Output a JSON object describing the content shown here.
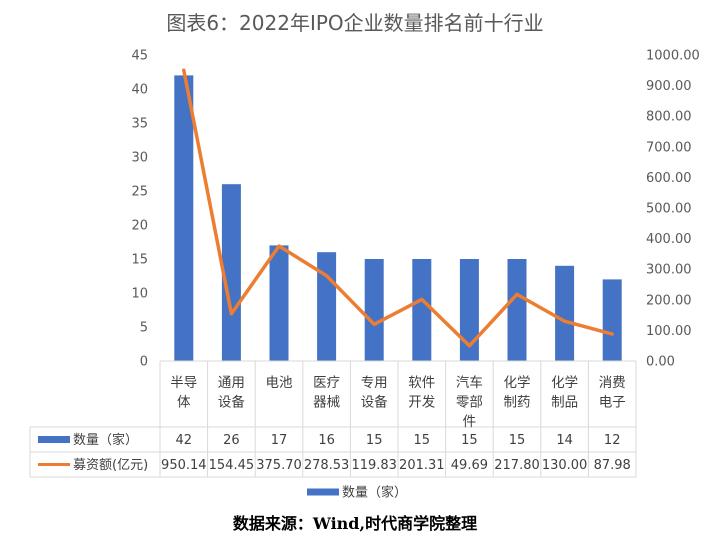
{
  "chart_data": {
    "type": "bar",
    "title": "图表6：2022年IPO企业数量排名前十行业",
    "categories": [
      [
        "半导",
        "体"
      ],
      [
        "通用",
        "设备"
      ],
      [
        "电池"
      ],
      [
        "医疗",
        "器械"
      ],
      [
        "专用",
        "设备"
      ],
      [
        "软件",
        "开发"
      ],
      [
        "汽车",
        "零部",
        "件"
      ],
      [
        "化学",
        "制药"
      ],
      [
        "化学",
        "制品"
      ],
      [
        "消费",
        "电子"
      ]
    ],
    "series": [
      {
        "name": "数量（家）",
        "type": "bar",
        "axis": "left",
        "color": "#4472C4",
        "values": [
          42,
          26,
          17,
          16,
          15,
          15,
          15,
          15,
          14,
          12
        ],
        "labels": [
          "42",
          "26",
          "17",
          "16",
          "15",
          "15",
          "15",
          "15",
          "14",
          "12"
        ]
      },
      {
        "name": "募资额(亿元)",
        "type": "line",
        "axis": "right",
        "color": "#ED7D31",
        "values": [
          950.14,
          154.45,
          375.7,
          278.53,
          119.83,
          201.31,
          49.69,
          217.8,
          130.0,
          87.98
        ],
        "labels": [
          "950.14",
          "154.45",
          "375.70",
          "278.53",
          "119.83",
          "201.31",
          "49.69",
          "217.80",
          "130.00",
          "87.98"
        ]
      }
    ],
    "y_left": {
      "min": 0,
      "max": 45,
      "ticks": [
        "0",
        "5",
        "10",
        "15",
        "20",
        "25",
        "30",
        "35",
        "40",
        "45"
      ]
    },
    "y_right": {
      "min": 0,
      "max": 1000,
      "ticks": [
        "0.00",
        "100.00",
        "200.00",
        "300.00",
        "400.00",
        "500.00",
        "600.00",
        "700.00",
        "800.00",
        "900.00",
        "1000.00"
      ]
    },
    "grid": false,
    "legend": {
      "placement": "bottom",
      "entries": [
        "数量（家）"
      ]
    },
    "data_table": true
  },
  "source_note": "数据来源：Wind,时代商学院整理"
}
